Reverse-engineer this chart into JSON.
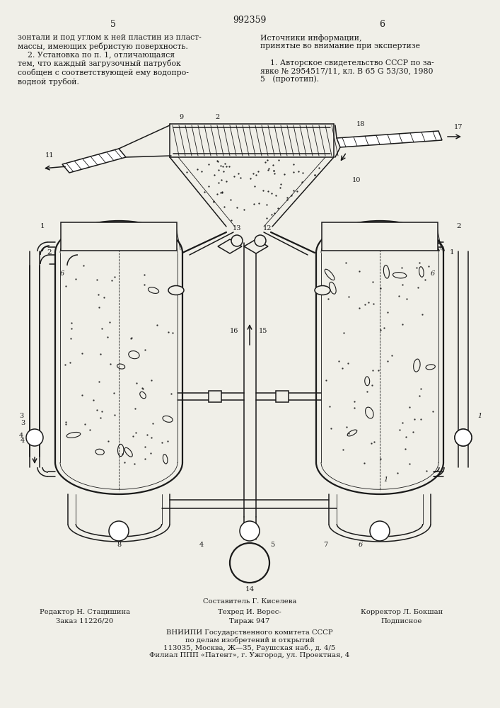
{
  "patent_number": "992359",
  "page_left": "5",
  "page_right": "6",
  "bg_color": "#f0efe8",
  "line_color": "#1a1a1a",
  "lw_main": 1.1,
  "lw_thin": 0.6,
  "lw_thick": 1.6,
  "text_top_left": "зонтали и под углом к ней пластин из пласт-\nмассы, имеющих ребристую поверхность.\n    2. Установка по п. 1, отличающаяся\nтем, что каждый загрузочный патрубок\nсообщен с соответствующей ему водопро-\nводной трубой.",
  "text_top_right": "Источники информации,\nпринятые во внимание при экспертизе\n\n    1. Авторское свидетельство СССР по за-\nявке № 2954517/11, кл. В 65 G 53/30, 1980\n5   (прототип).",
  "footer_composer": "Составитель Г. Киселева",
  "footer_editor": "Редактор Н. Стацишина",
  "footer_tech": "Техред И. Верес-",
  "footer_corrector": "Корректор Л. Бокшан",
  "footer_order": "Заказ 11226/20",
  "footer_print": "Тираж 947",
  "footer_sub": "Подписное",
  "footer_org1": "ВНИИПИ Государственного комитета СССР",
  "footer_org2": "по делам изобретений и открытий",
  "footer_org3": "113035, Москва, Ж—35, Раушская наб., д. 4/5",
  "footer_org4": "Филиал ППП «Патент», г. Ужгород, ул. Проектная, 4"
}
